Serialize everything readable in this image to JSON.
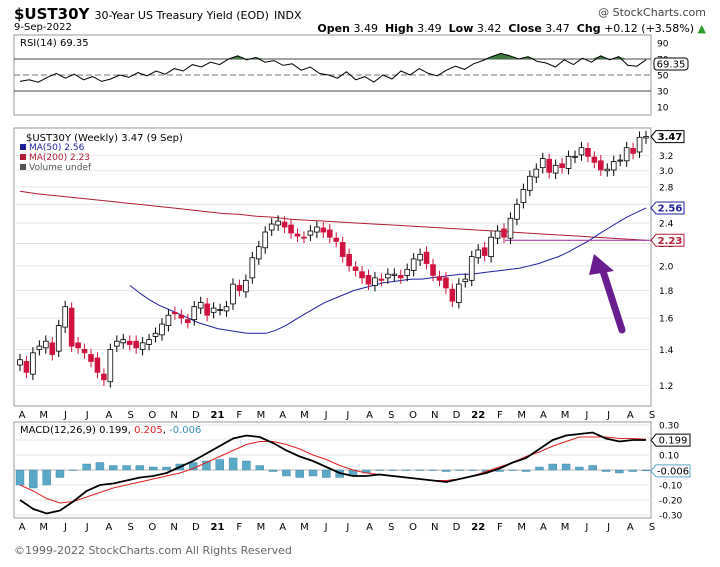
{
  "header": {
    "symbol": "$UST30Y",
    "description": "30-Year US Treasury Yield (EOD)",
    "exchange": "INDX",
    "date": "9-Sep-2022",
    "brand": "@ StockCharts.com",
    "open_label": "Open",
    "open": "3.49",
    "high_label": "High",
    "high": "3.49",
    "low_label": "Low",
    "low": "3.42",
    "close_label": "Close",
    "close": "3.47",
    "chg_label": "Chg",
    "chg": "+0.12 (+3.58%)",
    "chg_arrow": "triangle-up-icon",
    "chg_color": "#2a9d2a"
  },
  "footer": "©1999-2022 StockCharts.com All Rights Reserved",
  "colors": {
    "up": "#ffffff",
    "down": "#d0133e",
    "ma50": "#1f1f9e",
    "ma200": "#b41c36",
    "rsi_fill": "#3f7a3f",
    "macd_line": "#000000",
    "signal_line": "#e02020",
    "hist": "#5aa9c9",
    "arrow": "#6a1d8f",
    "hline": "#a020a0"
  },
  "chart_data": [
    {
      "type": "line",
      "panel": "rsi",
      "label": "RSI(14) 69.35",
      "yticks": [
        "90",
        "70",
        "50",
        "30",
        "10"
      ],
      "ylim": [
        0,
        100
      ],
      "levels": [
        70,
        50,
        30
      ],
      "current": "69.35",
      "values": [
        42,
        44,
        41,
        47,
        52,
        46,
        51,
        44,
        48,
        42,
        45,
        50,
        47,
        53,
        49,
        55,
        51,
        58,
        55,
        63,
        60,
        66,
        63,
        70,
        74,
        69,
        72,
        66,
        68,
        62,
        64,
        56,
        60,
        52,
        50,
        46,
        54,
        44,
        48,
        41,
        50,
        45,
        55,
        50,
        58,
        52,
        49,
        56,
        61,
        57,
        64,
        68,
        73,
        77,
        74,
        70,
        73,
        67,
        65,
        60,
        69,
        63,
        71,
        66,
        74,
        69,
        73,
        62,
        61,
        69
      ]
    },
    {
      "type": "candlestick",
      "panel": "price",
      "label": "$UST30Y (Weekly) 3.47 (9 Sep)",
      "legend": [
        {
          "name": "MA(50) 2.56",
          "color": "#1f1f9e"
        },
        {
          "name": "MA(200) 2.23",
          "color": "#b41c36"
        },
        {
          "name": "Volume undef",
          "color": "#555555"
        }
      ],
      "scale": "log",
      "ylim": [
        1.1,
        3.6
      ],
      "yticks": [
        "3.2",
        "3.0",
        "2.8",
        "2.6",
        "2.4",
        "2.2",
        "2.0",
        "1.8",
        "1.6",
        "1.4",
        "1.2"
      ],
      "ytick_values": [
        3.2,
        3.0,
        2.8,
        2.6,
        2.4,
        2.2,
        2.0,
        1.8,
        1.6,
        1.4,
        1.2
      ],
      "badges": [
        {
          "text": "3.47",
          "value": 3.47,
          "color": "#000000"
        },
        {
          "text": "2.56",
          "value": 2.56,
          "color": "#1f1f9e"
        },
        {
          "text": "2.23",
          "value": 2.23,
          "color": "#b41c36"
        }
      ],
      "xticks": [
        "A",
        "M",
        "J",
        "J",
        "A",
        "S",
        "O",
        "N",
        "D",
        "21",
        "F",
        "M",
        "A",
        "M",
        "J",
        "J",
        "A",
        "S",
        "O",
        "N",
        "D",
        "22",
        "F",
        "M",
        "A",
        "M",
        "J",
        "J",
        "A",
        "S"
      ],
      "close": [
        1.34,
        1.27,
        1.38,
        1.42,
        1.45,
        1.37,
        1.55,
        1.68,
        1.42,
        1.41,
        1.38,
        1.33,
        1.27,
        1.23,
        1.4,
        1.45,
        1.46,
        1.43,
        1.41,
        1.44,
        1.46,
        1.5,
        1.56,
        1.62,
        1.63,
        1.6,
        1.57,
        1.68,
        1.71,
        1.62,
        1.67,
        1.66,
        1.68,
        1.85,
        1.8,
        1.88,
        2.07,
        2.17,
        2.31,
        2.39,
        2.42,
        2.36,
        2.3,
        2.27,
        2.26,
        2.32,
        2.36,
        2.31,
        2.26,
        2.22,
        2.08,
        2.0,
        1.96,
        1.9,
        1.85,
        1.9,
        1.88,
        1.93,
        1.93,
        1.9,
        1.97,
        2.06,
        2.1,
        2.02,
        1.92,
        1.88,
        1.82,
        1.72,
        1.85,
        1.89,
        2.08,
        2.14,
        2.09,
        2.26,
        2.32,
        2.26,
        2.45,
        2.6,
        2.77,
        2.93,
        3.02,
        3.16,
        2.98,
        3.07,
        3.04,
        3.19,
        3.19,
        3.31,
        3.19,
        3.11,
        3.01,
        3.02,
        3.12,
        3.14,
        3.31,
        3.23,
        3.46,
        3.47
      ],
      "ma50": [
        1.84,
        1.78,
        1.73,
        1.69,
        1.66,
        1.63,
        1.6,
        1.57,
        1.55,
        1.53,
        1.52,
        1.51,
        1.5,
        1.5,
        1.5,
        1.52,
        1.55,
        1.59,
        1.63,
        1.67,
        1.71,
        1.74,
        1.77,
        1.8,
        1.82,
        1.84,
        1.86,
        1.87,
        1.88,
        1.89,
        1.89,
        1.9,
        1.91,
        1.92,
        1.93,
        1.93,
        1.94,
        1.95,
        1.96,
        1.97,
        1.98,
        2.0,
        2.02,
        2.05,
        2.08,
        2.12,
        2.17,
        2.22,
        2.28,
        2.34,
        2.4,
        2.46,
        2.51,
        2.56
      ],
      "ma200": [
        2.75,
        2.72,
        2.7,
        2.68,
        2.66,
        2.64,
        2.62,
        2.6,
        2.58,
        2.56,
        2.54,
        2.52,
        2.5,
        2.49,
        2.47,
        2.46,
        2.44,
        2.43,
        2.42,
        2.41,
        2.4,
        2.39,
        2.38,
        2.37,
        2.36,
        2.35,
        2.34,
        2.33,
        2.32,
        2.31,
        2.3,
        2.29,
        2.28,
        2.27,
        2.26,
        2.25,
        2.24,
        2.23
      ],
      "horizontal_line": 2.23,
      "annotation": "purple arrow pointing to MA(50)/MA(200) crossover"
    },
    {
      "type": "line",
      "panel": "macd",
      "label": "MACD(12,26,9)",
      "macd_value": "0.199",
      "signal_value": "0.205",
      "hist_value": "-0.006",
      "ylim": [
        -0.32,
        0.32
      ],
      "yticks": [
        "0.30",
        "0.20",
        "0.10",
        "-0.10",
        "-0.20",
        "-0.30"
      ],
      "ytick_values": [
        0.3,
        0.2,
        0.1,
        -0.1,
        -0.2,
        -0.3
      ],
      "badges": [
        {
          "text": "0.199",
          "value": 0.199,
          "color": "#000000"
        },
        {
          "text": "-0.006",
          "value": -0.006,
          "color": "#5aa9c9"
        }
      ],
      "xticks": [
        "A",
        "M",
        "J",
        "J",
        "A",
        "S",
        "O",
        "N",
        "D",
        "21",
        "F",
        "M",
        "A",
        "M",
        "J",
        "J",
        "A",
        "S",
        "O",
        "N",
        "D",
        "22",
        "F",
        "M",
        "A",
        "M",
        "J",
        "J",
        "A",
        "S"
      ],
      "macd": [
        -0.2,
        -0.26,
        -0.29,
        -0.27,
        -0.21,
        -0.14,
        -0.1,
        -0.09,
        -0.07,
        -0.05,
        -0.04,
        -0.02,
        0.02,
        0.06,
        0.11,
        0.16,
        0.21,
        0.23,
        0.22,
        0.18,
        0.13,
        0.09,
        0.06,
        0.02,
        -0.02,
        -0.04,
        -0.04,
        -0.03,
        -0.04,
        -0.05,
        -0.06,
        -0.07,
        -0.08,
        -0.06,
        -0.04,
        -0.02,
        0.01,
        0.05,
        0.08,
        0.14,
        0.2,
        0.23,
        0.24,
        0.25,
        0.21,
        0.19,
        0.2,
        0.2
      ],
      "signal": [
        -0.1,
        -0.14,
        -0.19,
        -0.22,
        -0.21,
        -0.18,
        -0.15,
        -0.12,
        -0.1,
        -0.08,
        -0.06,
        -0.04,
        -0.02,
        0.01,
        0.05,
        0.09,
        0.13,
        0.17,
        0.19,
        0.19,
        0.17,
        0.14,
        0.1,
        0.07,
        0.03,
        0.0,
        -0.02,
        -0.03,
        -0.04,
        -0.05,
        -0.06,
        -0.07,
        -0.07,
        -0.06,
        -0.04,
        -0.01,
        0.02,
        0.05,
        0.09,
        0.12,
        0.16,
        0.19,
        0.22,
        0.22,
        0.22,
        0.21,
        0.21,
        0.205
      ]
    }
  ]
}
